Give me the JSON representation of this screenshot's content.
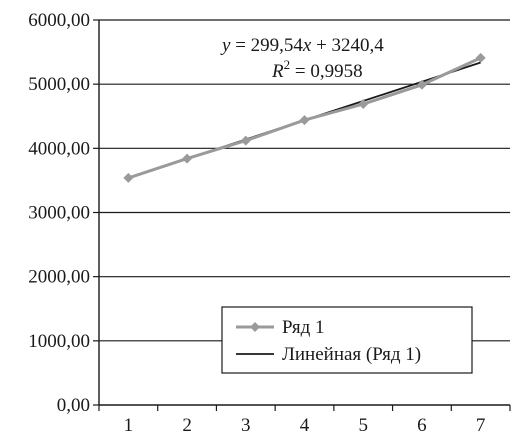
{
  "chart_data": {
    "type": "line",
    "x": [
      1,
      2,
      3,
      4,
      5,
      6,
      7
    ],
    "series": [
      {
        "name": "Ряд 1",
        "values": [
          3540,
          3840,
          4120,
          4440,
          4690,
          4990,
          5410
        ],
        "color": "#9a9a9a",
        "marker": "diamond"
      }
    ],
    "trendline": {
      "name": "Линейная (Ряд 1)",
      "type": "linear",
      "slope": 299.54,
      "intercept": 3240.4,
      "color": "#1a1a1a"
    },
    "equation": {
      "y_var": "y",
      "eq_body": " = 299,54",
      "x_var": "x",
      "eq_tail": " + 3240,4",
      "r_var": "R",
      "r_exp": "2",
      "r_value": " = 0,9958"
    },
    "y_ticks": [
      "0,00",
      "1000,00",
      "2000,00",
      "3000,00",
      "4000,00",
      "5000,00",
      "6000,00"
    ],
    "x_ticks": [
      "1",
      "2",
      "3",
      "4",
      "5",
      "6",
      "7"
    ],
    "ylim": [
      0,
      6000
    ],
    "xlim": [
      0.5,
      7.5
    ],
    "grid": "horizontal",
    "legend_position": "bottom-right",
    "title": "",
    "xlabel": "",
    "ylabel": ""
  }
}
